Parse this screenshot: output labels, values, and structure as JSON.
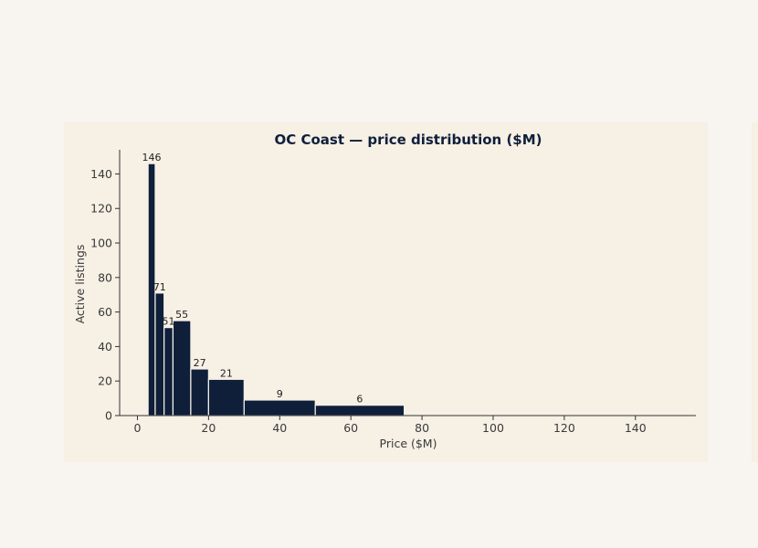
{
  "chart_data": {
    "type": "bar",
    "title": "OC Coast — price distribution ($M)",
    "xlabel": "Price ($M)",
    "ylabel": "Active listings",
    "xlim": [
      -5,
      157
    ],
    "ylim": [
      0,
      154
    ],
    "xticks": [
      0,
      20,
      40,
      60,
      80,
      100,
      120,
      140
    ],
    "yticks": [
      0,
      20,
      40,
      60,
      80,
      100,
      120,
      140
    ],
    "grid": false,
    "bar_color": "#0f1f3a",
    "bins": [
      {
        "x0": 3,
        "x1": 5,
        "count": 146,
        "label": "146"
      },
      {
        "x0": 5,
        "x1": 7.5,
        "count": 71,
        "label": "71"
      },
      {
        "x0": 7.5,
        "x1": 10,
        "count": 51,
        "label": "51"
      },
      {
        "x0": 10,
        "x1": 15,
        "count": 55,
        "label": "55"
      },
      {
        "x0": 15,
        "x1": 20,
        "count": 27,
        "label": "27"
      },
      {
        "x0": 20,
        "x1": 30,
        "count": 21,
        "label": "21"
      },
      {
        "x0": 30,
        "x1": 50,
        "count": 9,
        "label": "9"
      },
      {
        "x0": 50,
        "x1": 75,
        "count": 6,
        "label": "6"
      }
    ]
  }
}
